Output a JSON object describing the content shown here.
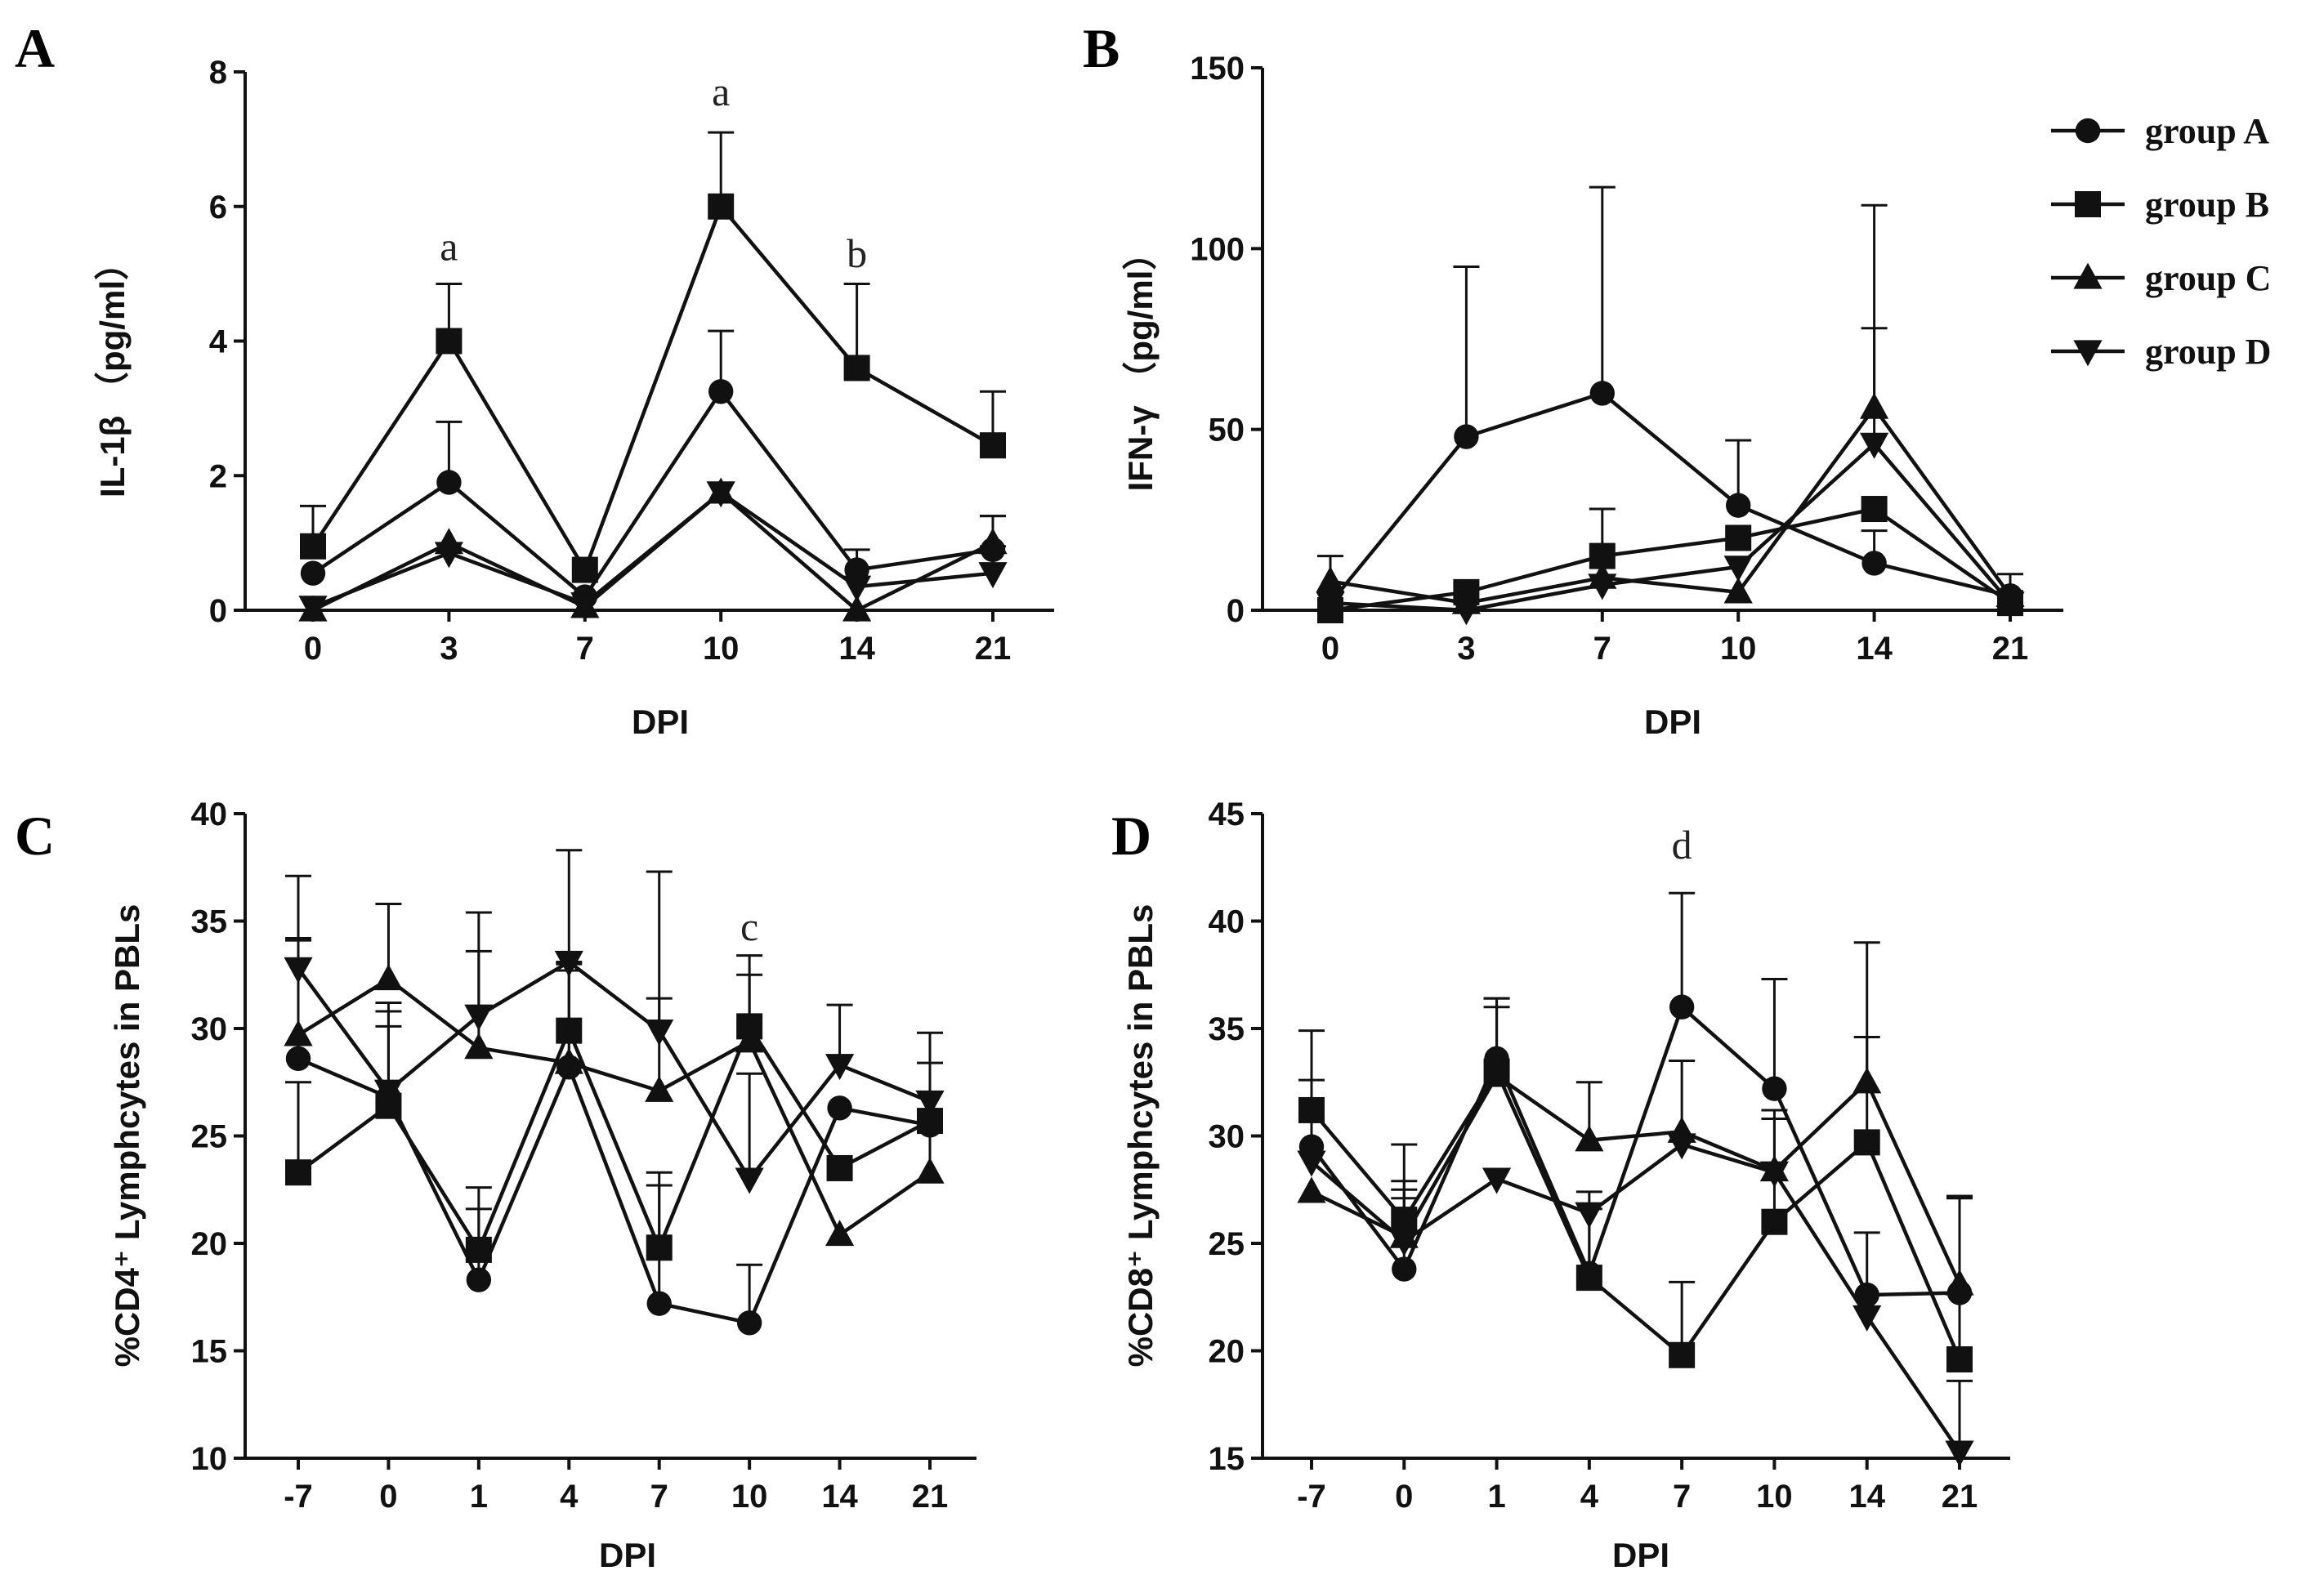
{
  "legend": {
    "entries": [
      {
        "label": "group A",
        "marker": "circle"
      },
      {
        "label": "group B",
        "marker": "square"
      },
      {
        "label": "group C",
        "marker": "triangle-up"
      },
      {
        "label": "group D",
        "marker": "triangle-down"
      }
    ],
    "placement": "top-right"
  },
  "chart_data": [
    {
      "panel": "A",
      "type": "line",
      "xlabel": "DPI",
      "ylabel": "IL-1β （pg/ml）",
      "categories": [
        "0",
        "3",
        "7",
        "10",
        "14",
        "21"
      ],
      "ylim": [
        0,
        8
      ],
      "yticks": [
        "0",
        "2",
        "4",
        "6",
        "8"
      ],
      "series": [
        {
          "name": "group A",
          "marker": "circle",
          "values": [
            0.55,
            1.9,
            0.2,
            3.25,
            0.6,
            0.9
          ],
          "err": [
            0,
            0.9,
            0,
            0.9,
            0.3,
            0.5
          ]
        },
        {
          "name": "group B",
          "marker": "square",
          "values": [
            0.95,
            4.0,
            0.6,
            6.0,
            3.6,
            2.45
          ],
          "err": [
            0.6,
            0.85,
            0,
            1.1,
            1.25,
            0.8
          ]
        },
        {
          "name": "group C",
          "marker": "triangle-up",
          "values": [
            0.0,
            1.0,
            0.05,
            1.75,
            0.0,
            1.0
          ],
          "err": [
            0,
            0,
            0,
            0,
            0,
            0.4
          ]
        },
        {
          "name": "group D",
          "marker": "triangle-down",
          "values": [
            0.05,
            0.85,
            0.1,
            1.75,
            0.35,
            0.55
          ],
          "err": [
            0,
            0,
            0,
            0,
            0,
            0.4
          ]
        }
      ],
      "annotations": [
        {
          "text": "a",
          "category": "3",
          "y": 5.2
        },
        {
          "text": "a",
          "category": "10",
          "y": 7.5
        },
        {
          "text": "b",
          "category": "14",
          "y": 5.1
        }
      ]
    },
    {
      "panel": "B",
      "type": "line",
      "xlabel": "DPI",
      "ylabel": "IFN-γ （pg/ml）",
      "categories": [
        "0",
        "3",
        "7",
        "10",
        "14",
        "21"
      ],
      "ylim": [
        0,
        150
      ],
      "yticks": [
        "0",
        "50",
        "100",
        "150"
      ],
      "series": [
        {
          "name": "group A",
          "marker": "circle",
          "values": [
            2,
            48,
            60,
            29,
            13,
            4
          ],
          "err": [
            0,
            47,
            57,
            18,
            9,
            6
          ]
        },
        {
          "name": "group B",
          "marker": "square",
          "values": [
            0,
            5,
            15,
            20,
            28,
            2
          ],
          "err": [
            0,
            0,
            13,
            0,
            0,
            0
          ]
        },
        {
          "name": "group C",
          "marker": "triangle-up",
          "values": [
            8,
            2,
            9,
            5,
            56,
            4
          ],
          "err": [
            7,
            0,
            0,
            0,
            56,
            0
          ]
        },
        {
          "name": "group D",
          "marker": "triangle-down",
          "values": [
            2,
            0,
            7,
            12,
            46,
            2
          ],
          "err": [
            0,
            0,
            0,
            0,
            32,
            0
          ]
        }
      ],
      "annotations": []
    },
    {
      "panel": "C",
      "type": "line",
      "xlabel": "DPI",
      "ylabel": "%CD4⁺ Lymphcytes in PBLs",
      "categories": [
        "-7",
        "0",
        "1",
        "4",
        "7",
        "10",
        "14",
        "21"
      ],
      "ylim": [
        10,
        40
      ],
      "yticks": [
        "10",
        "15",
        "20",
        "25",
        "30",
        "35",
        "40"
      ],
      "series": [
        {
          "name": "group A",
          "marker": "circle",
          "values": [
            28.6,
            26.8,
            18.3,
            28.2,
            17.2,
            16.3,
            26.3,
            25.5
          ],
          "err": [
            5.5,
            3.3,
            3.3,
            4.8,
            5.5,
            2.7,
            0,
            0
          ]
        },
        {
          "name": "group B",
          "marker": "square",
          "values": [
            23.3,
            26.4,
            19.7,
            29.9,
            19.8,
            30.1,
            23.5,
            25.7
          ],
          "err": [
            4.2,
            4.4,
            2.9,
            3.2,
            3.5,
            2.4,
            0,
            0
          ]
        },
        {
          "name": "group C",
          "marker": "triangle-up",
          "values": [
            29.7,
            32.3,
            29.1,
            28.4,
            27.1,
            29.4,
            20.4,
            23.3
          ],
          "err": [
            4.5,
            3.5,
            4.5,
            4.3,
            4.3,
            4.0,
            0,
            5.1
          ]
        },
        {
          "name": "group D",
          "marker": "triangle-down",
          "values": [
            32.8,
            27.1,
            30.6,
            33.1,
            29.9,
            23.0,
            28.3,
            26.6
          ],
          "err": [
            4.3,
            4.1,
            4.8,
            5.2,
            7.4,
            4.9,
            2.8,
            3.2
          ]
        }
      ],
      "annotations": [
        {
          "text": "c",
          "category": "10",
          "y": 34.1
        }
      ]
    },
    {
      "panel": "D",
      "type": "line",
      "xlabel": "DPI",
      "ylabel": "%CD8⁺ Lymphcytes in PBLs",
      "categories": [
        "-7",
        "0",
        "1",
        "4",
        "7",
        "10",
        "14",
        "21"
      ],
      "ylim": [
        15,
        45
      ],
      "yticks": [
        "15",
        "20",
        "25",
        "30",
        "35",
        "40",
        "45"
      ],
      "series": [
        {
          "name": "group A",
          "marker": "circle",
          "values": [
            29.5,
            23.8,
            33.6,
            23.6,
            36.0,
            32.2,
            22.6,
            22.7
          ],
          "err": [
            3.1,
            3.3,
            2.8,
            3.0,
            5.3,
            5.1,
            2.9,
            4.5
          ]
        },
        {
          "name": "group B",
          "marker": "square",
          "values": [
            31.2,
            26.1,
            33.0,
            23.4,
            19.8,
            26.0,
            29.7,
            19.6
          ],
          "err": [
            3.7,
            3.5,
            3.4,
            4.0,
            3.4,
            4.8,
            4.9,
            7.5
          ]
        },
        {
          "name": "group C",
          "marker": "triangle-up",
          "values": [
            27.4,
            25.3,
            32.8,
            29.8,
            30.2,
            28.4,
            32.5,
            23.1
          ],
          "err": [
            0,
            2.6,
            3.2,
            2.7,
            3.3,
            2.8,
            6.5,
            4.1
          ]
        },
        {
          "name": "group D",
          "marker": "triangle-down",
          "values": [
            28.8,
            25.1,
            28.0,
            26.4,
            29.6,
            28.3,
            21.6,
            15.3
          ],
          "err": [
            0,
            2.4,
            0,
            0,
            0,
            0,
            0,
            3.3
          ]
        }
      ],
      "annotations": [
        {
          "text": "d",
          "category": "7",
          "y": 42.9
        }
      ]
    }
  ]
}
